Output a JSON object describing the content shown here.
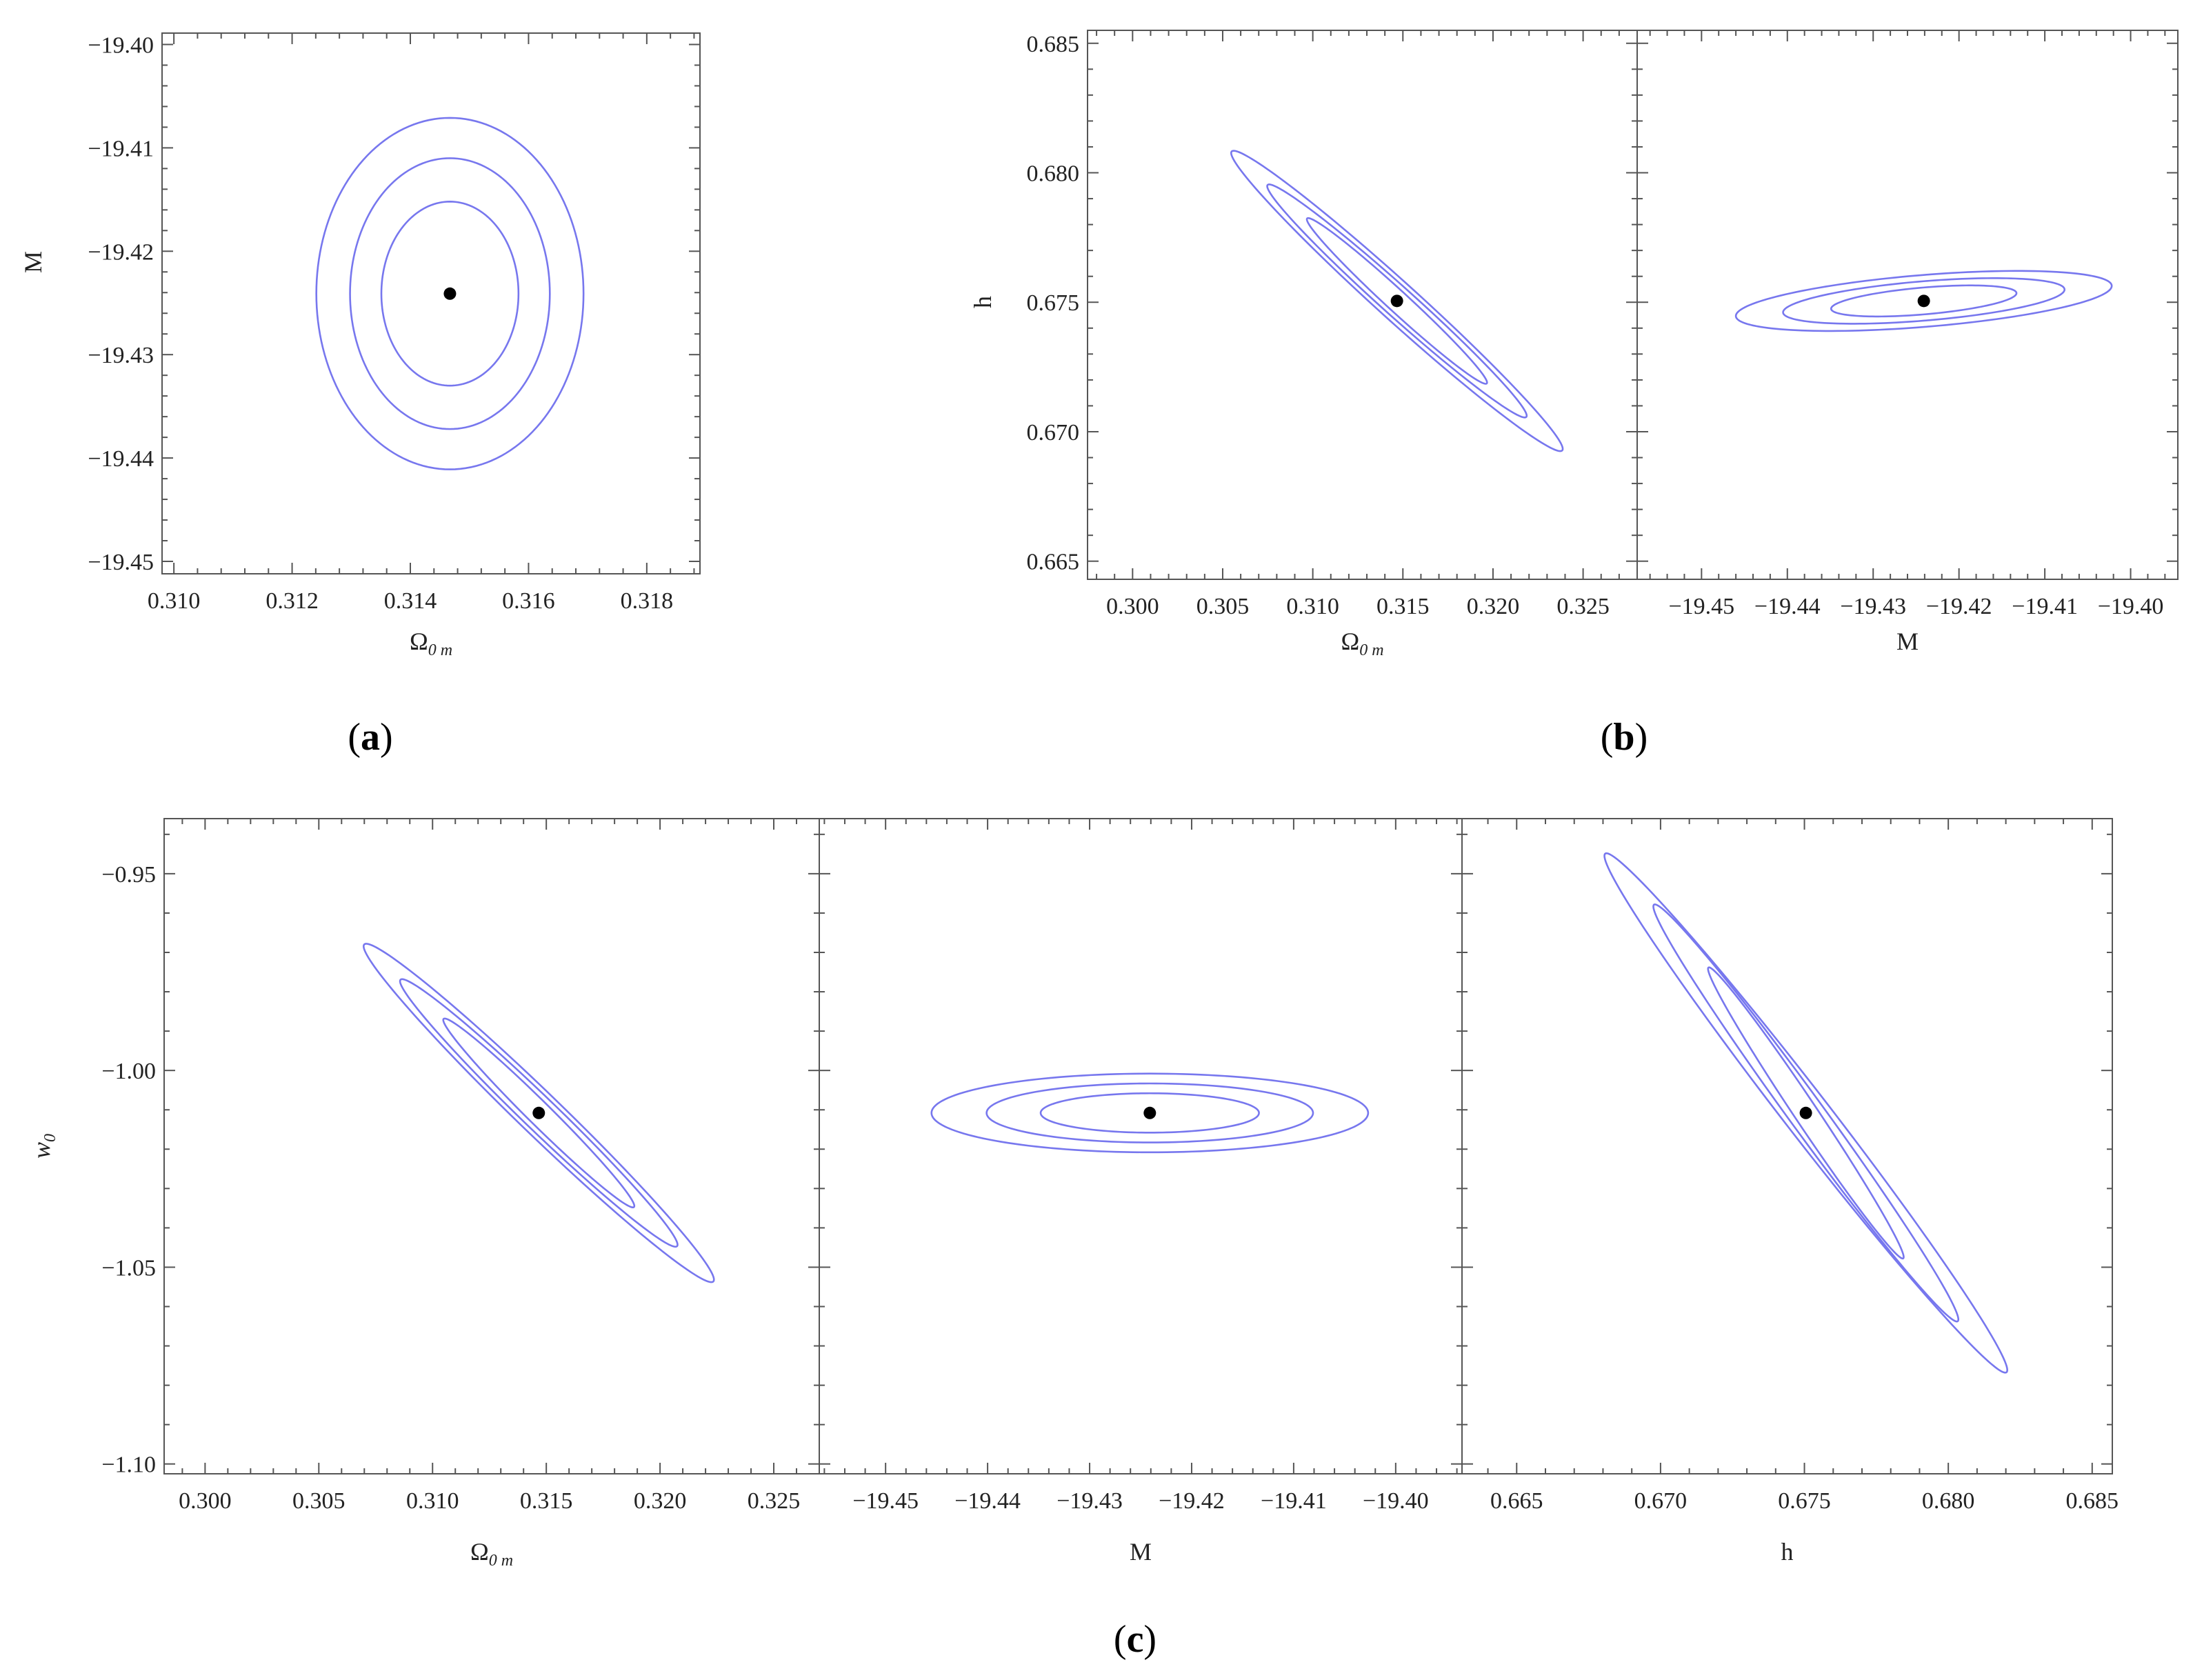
{
  "figure": {
    "panel_labels": [
      {
        "id": "a",
        "text": "a"
      },
      {
        "id": "b",
        "text": "b"
      },
      {
        "id": "c",
        "text": "c"
      }
    ],
    "contour_color": "#7777ee",
    "bestfit_color": "#000000"
  },
  "chart_data": [
    {
      "type": "contour",
      "panel": "a",
      "xlabel": {
        "main": "Ω",
        "sub": "0 m"
      },
      "ylabel": {
        "main": "M",
        "italic": false
      },
      "xlim": [
        0.3098,
        0.3189
      ],
      "ylim": [
        -19.4512,
        -19.3989
      ],
      "xticks": [
        0.31,
        0.312,
        0.314,
        0.316,
        0.318
      ],
      "xtick_labels": [
        "0.310",
        "0.312",
        "0.314",
        "0.316",
        "0.318"
      ],
      "yticks": [
        -19.4,
        -19.41,
        -19.42,
        -19.43,
        -19.44,
        -19.45
      ],
      "ytick_labels": [
        "−19.40",
        "−19.41",
        "−19.42",
        "−19.43",
        "−19.44",
        "−19.45"
      ],
      "best_fit": {
        "x": 0.31467,
        "y": -19.4241
      },
      "contours": [
        {
          "level": "1σ",
          "cx": 0.31467,
          "cy": -19.4241,
          "rx": 0.00116,
          "ry": 0.0089,
          "corr": 0
        },
        {
          "level": "2σ",
          "cx": 0.31467,
          "cy": -19.4241,
          "rx": 0.00169,
          "ry": 0.0131,
          "corr": 0
        },
        {
          "level": "3σ",
          "cx": 0.31467,
          "cy": -19.4241,
          "rx": 0.00226,
          "ry": 0.017,
          "corr": 0
        }
      ]
    },
    {
      "type": "contour",
      "panel": "b",
      "subpanel": 1,
      "xlabel": {
        "main": "Ω",
        "sub": "0 m"
      },
      "ylabel": {
        "main": "h",
        "italic": false
      },
      "xlim": [
        0.2975,
        0.328
      ],
      "ylim": [
        0.6643,
        0.6855
      ],
      "xticks": [
        0.3,
        0.305,
        0.31,
        0.315,
        0.32,
        0.325
      ],
      "xtick_labels": [
        "0.300",
        "0.305",
        "0.310",
        "0.315",
        "0.320",
        "0.325"
      ],
      "yticks": [
        0.665,
        0.67,
        0.675,
        0.68,
        0.685
      ],
      "ytick_labels": [
        "0.665",
        "0.670",
        "0.675",
        "0.680",
        "0.685"
      ],
      "best_fit": {
        "x": 0.31467,
        "y": 0.67505
      },
      "contours": [
        {
          "level": "1σ",
          "cx": 0.31467,
          "cy": 0.67505,
          "rx": 0.005,
          "ry": 0.0032,
          "corr": -0.985
        },
        {
          "level": "2σ",
          "cx": 0.31467,
          "cy": 0.67505,
          "rx": 0.0072,
          "ry": 0.0045,
          "corr": -0.985
        },
        {
          "level": "3σ",
          "cx": 0.31467,
          "cy": 0.67505,
          "rx": 0.0092,
          "ry": 0.0058,
          "corr": -0.985
        }
      ]
    },
    {
      "type": "contour",
      "panel": "b",
      "subpanel": 2,
      "xlabel": {
        "main": "M",
        "sub": ""
      },
      "ylim": [
        0.6643,
        0.6855
      ],
      "xlim": [
        -19.4575,
        -19.3945
      ],
      "xticks": [
        -19.45,
        -19.44,
        -19.43,
        -19.42,
        -19.41,
        -19.4
      ],
      "xtick_labels": [
        "−19.45",
        "−19.44",
        "−19.43",
        "−19.42",
        "−19.41",
        "−19.40"
      ],
      "best_fit": {
        "x": -19.4241,
        "y": 0.67505
      },
      "contours": [
        {
          "level": "1σ",
          "cx": -19.4241,
          "cy": 0.67505,
          "rx": 0.0108,
          "ry": 0.0006,
          "corr": 0.5
        },
        {
          "level": "2σ",
          "cx": -19.4241,
          "cy": 0.67505,
          "rx": 0.0164,
          "ry": 0.00088,
          "corr": 0.5
        },
        {
          "level": "3σ",
          "cx": -19.4241,
          "cy": 0.67505,
          "rx": 0.0219,
          "ry": 0.00116,
          "corr": 0.5
        }
      ]
    },
    {
      "type": "contour",
      "panel": "c",
      "subpanel": 1,
      "xlabel": {
        "main": "Ω",
        "sub": "0 m"
      },
      "ylabel": {
        "main": "w",
        "sub": "0",
        "italic": true
      },
      "xlim": [
        0.2982,
        0.327
      ],
      "ylim": [
        -1.1025,
        -0.936
      ],
      "xticks": [
        0.3,
        0.305,
        0.31,
        0.315,
        0.32,
        0.325
      ],
      "xtick_labels": [
        "0.300",
        "0.305",
        "0.310",
        "0.315",
        "0.320",
        "0.325"
      ],
      "yticks": [
        -0.95,
        -1.0,
        -1.05,
        -1.1
      ],
      "ytick_labels": [
        "−0.95",
        "−1.00",
        "−1.05",
        "−1.10"
      ],
      "best_fit": {
        "x": 0.31467,
        "y": -1.0108
      },
      "contours": [
        {
          "level": "1σ",
          "cx": 0.31467,
          "cy": -1.0108,
          "rx": 0.0042,
          "ry": 0.024,
          "corr": -0.985
        },
        {
          "level": "2σ",
          "cx": 0.31467,
          "cy": -1.0108,
          "rx": 0.0061,
          "ry": 0.034,
          "corr": -0.985
        },
        {
          "level": "3σ",
          "cx": 0.31467,
          "cy": -1.0108,
          "rx": 0.0077,
          "ry": 0.043,
          "corr": -0.985
        }
      ]
    },
    {
      "type": "contour",
      "panel": "c",
      "subpanel": 2,
      "xlabel": {
        "main": "M",
        "sub": ""
      },
      "xlim": [
        -19.4565,
        -19.3935
      ],
      "ylim": [
        -1.1025,
        -0.936
      ],
      "xticks": [
        -19.45,
        -19.44,
        -19.43,
        -19.42,
        -19.41,
        -19.4
      ],
      "xtick_labels": [
        "−19.45",
        "−19.44",
        "−19.43",
        "−19.42",
        "−19.41",
        "−19.40"
      ],
      "best_fit": {
        "x": -19.4241,
        "y": -1.0108
      },
      "contours": [
        {
          "level": "1σ",
          "cx": -19.4241,
          "cy": -1.0108,
          "rx": 0.0107,
          "ry": 0.005,
          "corr": 0
        },
        {
          "level": "2σ",
          "cx": -19.4241,
          "cy": -1.0108,
          "rx": 0.016,
          "ry": 0.0075,
          "corr": 0
        },
        {
          "level": "3σ",
          "cx": -19.4241,
          "cy": -1.0108,
          "rx": 0.0214,
          "ry": 0.01,
          "corr": 0
        }
      ]
    },
    {
      "type": "contour",
      "panel": "c",
      "subpanel": 3,
      "xlabel": {
        "main": "h",
        "sub": ""
      },
      "xlim": [
        0.6631,
        0.6857
      ],
      "ylim": [
        -1.1025,
        -0.936
      ],
      "xticks": [
        0.665,
        0.67,
        0.675,
        0.68,
        0.685
      ],
      "xtick_labels": [
        "0.665",
        "0.670",
        "0.675",
        "0.680",
        "0.685"
      ],
      "best_fit": {
        "x": 0.67505,
        "y": -1.0108
      },
      "contours": [
        {
          "level": "1σ",
          "cx": 0.67505,
          "cy": -1.0108,
          "rx": 0.0034,
          "ry": 0.037,
          "corr": -0.99
        },
        {
          "level": "2σ",
          "cx": 0.67505,
          "cy": -1.0108,
          "rx": 0.0053,
          "ry": 0.053,
          "corr": -0.99
        },
        {
          "level": "3σ",
          "cx": 0.67505,
          "cy": -1.0108,
          "rx": 0.007,
          "ry": 0.066,
          "corr": -0.99
        }
      ]
    }
  ]
}
